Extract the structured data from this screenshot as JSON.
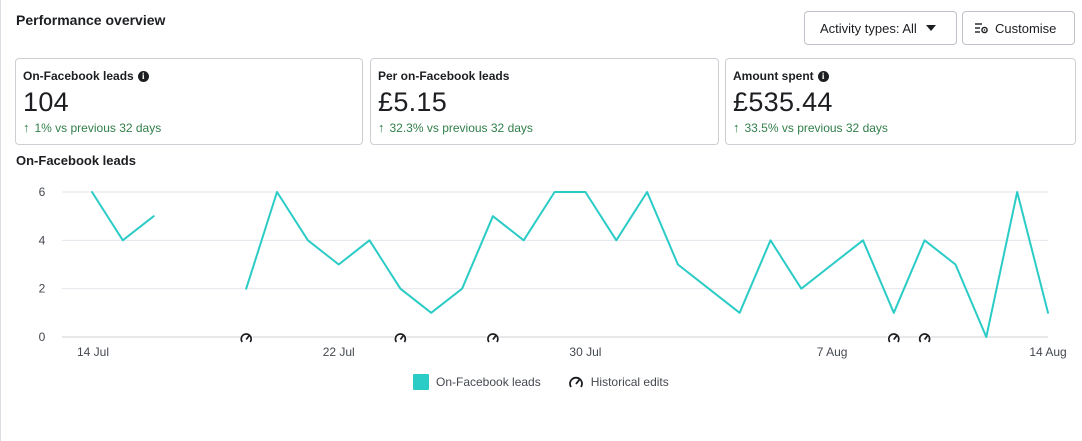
{
  "header": {
    "title": "Performance overview",
    "activity_button": "Activity types: All",
    "customise_button": "Customise"
  },
  "cards": [
    {
      "label": "On-Facebook leads",
      "has_info": true,
      "value": "104",
      "delta": "1% vs previous 32 days"
    },
    {
      "label": "Per on-Facebook leads",
      "has_info": false,
      "value": "£5.15",
      "delta": "32.3% vs previous 32 days"
    },
    {
      "label": "Amount spent",
      "has_info": true,
      "value": "£535.44",
      "delta": "33.5% vs previous 32 days"
    }
  ],
  "colors": {
    "series": "#2bcbc6",
    "positive_delta": "#31804b",
    "gridline": "#e4e6eb"
  },
  "chart_data": {
    "type": "line",
    "title": "On-Facebook leads",
    "xlabel": "",
    "ylabel": "",
    "ylim": [
      0,
      6
    ],
    "yticks": [
      0,
      2,
      4,
      6
    ],
    "grid": true,
    "legend_position": "bottom",
    "x": [
      "14 Jul",
      "15 Jul",
      "16 Jul",
      "17 Jul",
      "18 Jul",
      "19 Jul",
      "20 Jul",
      "21 Jul",
      "22 Jul",
      "23 Jul",
      "24 Jul",
      "25 Jul",
      "26 Jul",
      "27 Jul",
      "28 Jul",
      "29 Jul",
      "30 Jul",
      "31 Jul",
      "1 Aug",
      "2 Aug",
      "3 Aug",
      "4 Aug",
      "5 Aug",
      "6 Aug",
      "7 Aug",
      "8 Aug",
      "9 Aug",
      "10 Aug",
      "11 Aug",
      "12 Aug",
      "13 Aug",
      "14 Aug"
    ],
    "x_tick_labels": [
      "14 Jul",
      "22 Jul",
      "30 Jul",
      "7 Aug",
      "14 Aug"
    ],
    "series": [
      {
        "name": "On-Facebook leads",
        "values": [
          6,
          4,
          5,
          null,
          null,
          2,
          6,
          4,
          3,
          4,
          2,
          1,
          2,
          5,
          4,
          6,
          6,
          4,
          6,
          3,
          2,
          1,
          4,
          2,
          3,
          4,
          1,
          4,
          3,
          0,
          6,
          1
        ]
      }
    ],
    "historical_edits": [
      "19 Jul",
      "24 Jul",
      "27 Jul",
      "9 Aug",
      "10 Aug"
    ],
    "legend": [
      "On-Facebook leads",
      "Historical edits"
    ]
  }
}
